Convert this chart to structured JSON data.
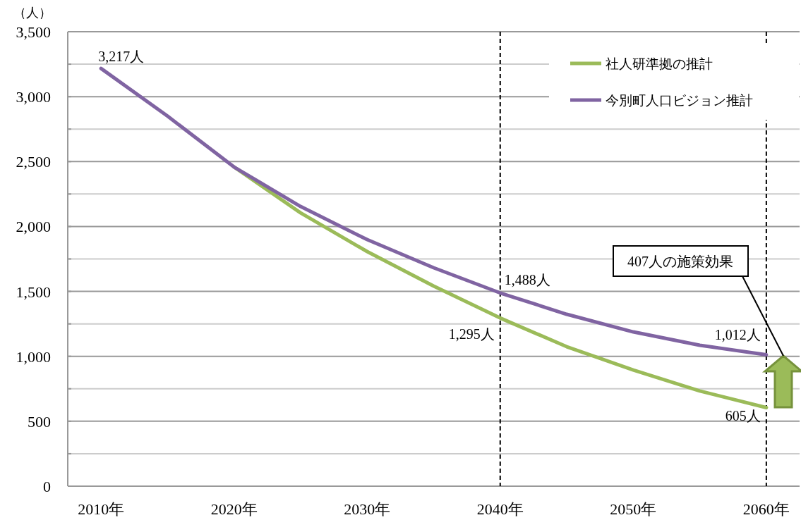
{
  "chart_data": {
    "type": "line",
    "ylabel": "（人）",
    "x": [
      2010,
      2015,
      2020,
      2025,
      2030,
      2035,
      2040,
      2045,
      2050,
      2055,
      2060
    ],
    "series": [
      {
        "name": "社人研準拠の推計",
        "color": "#9bbb59",
        "values": [
          null,
          null,
          2458,
          2105,
          1807,
          1541,
          1295,
          1074,
          895,
          733,
          605
        ]
      },
      {
        "name": "今別町人口ビジョン推計",
        "color": "#8064a2",
        "values": [
          3217,
          2850,
          2458,
          2154,
          1899,
          1682,
          1488,
          1324,
          1188,
          1085,
          1012
        ]
      }
    ],
    "xlim": [
      2007.5,
      2062.5
    ],
    "xticks": [
      {
        "value": 2010,
        "label": "2010年"
      },
      {
        "value": 2020,
        "label": "2020年"
      },
      {
        "value": 2030,
        "label": "2030年"
      },
      {
        "value": 2040,
        "label": "2040年"
      },
      {
        "value": 2050,
        "label": "2050年"
      },
      {
        "value": 2060,
        "label": "2060年"
      }
    ],
    "ylim": [
      0,
      3500
    ],
    "yticks": [
      0,
      {
        "value": 250,
        "label": null
      },
      {
        "value": 500,
        "label": "500"
      },
      {
        "value": 750,
        "label": null
      },
      {
        "value": 1000,
        "label": "1,000"
      },
      {
        "value": 1250,
        "label": null
      },
      {
        "value": 1500,
        "label": "1,500"
      },
      {
        "value": 1750,
        "label": null
      },
      {
        "value": 2000,
        "label": "2,000"
      },
      {
        "value": 2250,
        "label": null
      },
      {
        "value": 2500,
        "label": "2,500"
      },
      {
        "value": 2750,
        "label": null
      },
      {
        "value": 3000,
        "label": "3,000"
      },
      {
        "value": 3250,
        "label": null
      },
      {
        "value": 3500,
        "label": "3,500"
      }
    ],
    "grid": "y",
    "legend": "top right",
    "marker": "none",
    "line_style": "solid",
    "ref_lines": [
      {
        "axis": "x",
        "value": 2040,
        "color": "#000000",
        "line_style": "dashed"
      },
      {
        "axis": "x",
        "value": 2060,
        "color": "#000000",
        "line_style": "dashed"
      }
    ],
    "annotations": [
      {
        "text": "3,217人",
        "x": 2010,
        "y": 3217
      },
      {
        "text": "1,488人",
        "x": 2040,
        "y": 1488
      },
      {
        "text": "1,295人",
        "x": 2040,
        "y": 1295
      },
      {
        "text": "1,012人",
        "x": 2060,
        "y": 1012
      },
      {
        "text": "605人",
        "x": 2060,
        "y": 605
      },
      "407人の施策効果"
    ]
  }
}
